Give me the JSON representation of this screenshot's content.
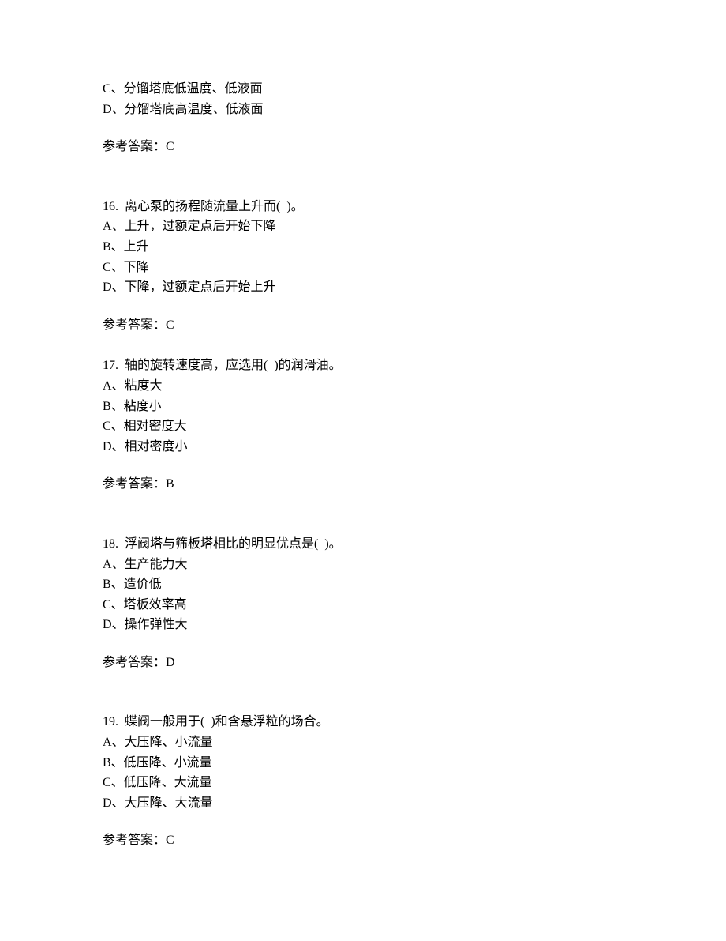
{
  "blocks": [
    {
      "lines": [
        "C、分馏塔底低温度、低液面",
        "D、分馏塔底高温度、低液面"
      ],
      "answer": "参考答案：C",
      "large_gap": true
    },
    {
      "lines": [
        "16.  离心泵的扬程随流量上升而(  )。",
        "A、上升，过额定点后开始下降",
        "B、上升",
        "C、下降",
        "D、下降，过额定点后开始上升"
      ],
      "answer": "参考答案：C",
      "large_gap": false
    },
    {
      "lines": [
        "17.  轴的旋转速度高，应选用(  )的润滑油。",
        "A、粘度大",
        "B、粘度小",
        "C、相对密度大",
        "D、相对密度小"
      ],
      "answer": "参考答案：B",
      "large_gap": true
    },
    {
      "lines": [
        "18.  浮阀塔与筛板塔相比的明显优点是(  )。",
        "A、生产能力大",
        "B、造价低",
        "C、塔板效率高",
        "D、操作弹性大"
      ],
      "answer": "参考答案：D",
      "large_gap": true
    },
    {
      "lines": [
        "19.  蝶阀一般用于(  )和含悬浮粒的场合。",
        "A、大压降、小流量",
        "B、低压降、小流量",
        "C、低压降、大流量",
        "D、大压降、大流量"
      ],
      "answer": "参考答案：C",
      "large_gap": false
    }
  ]
}
